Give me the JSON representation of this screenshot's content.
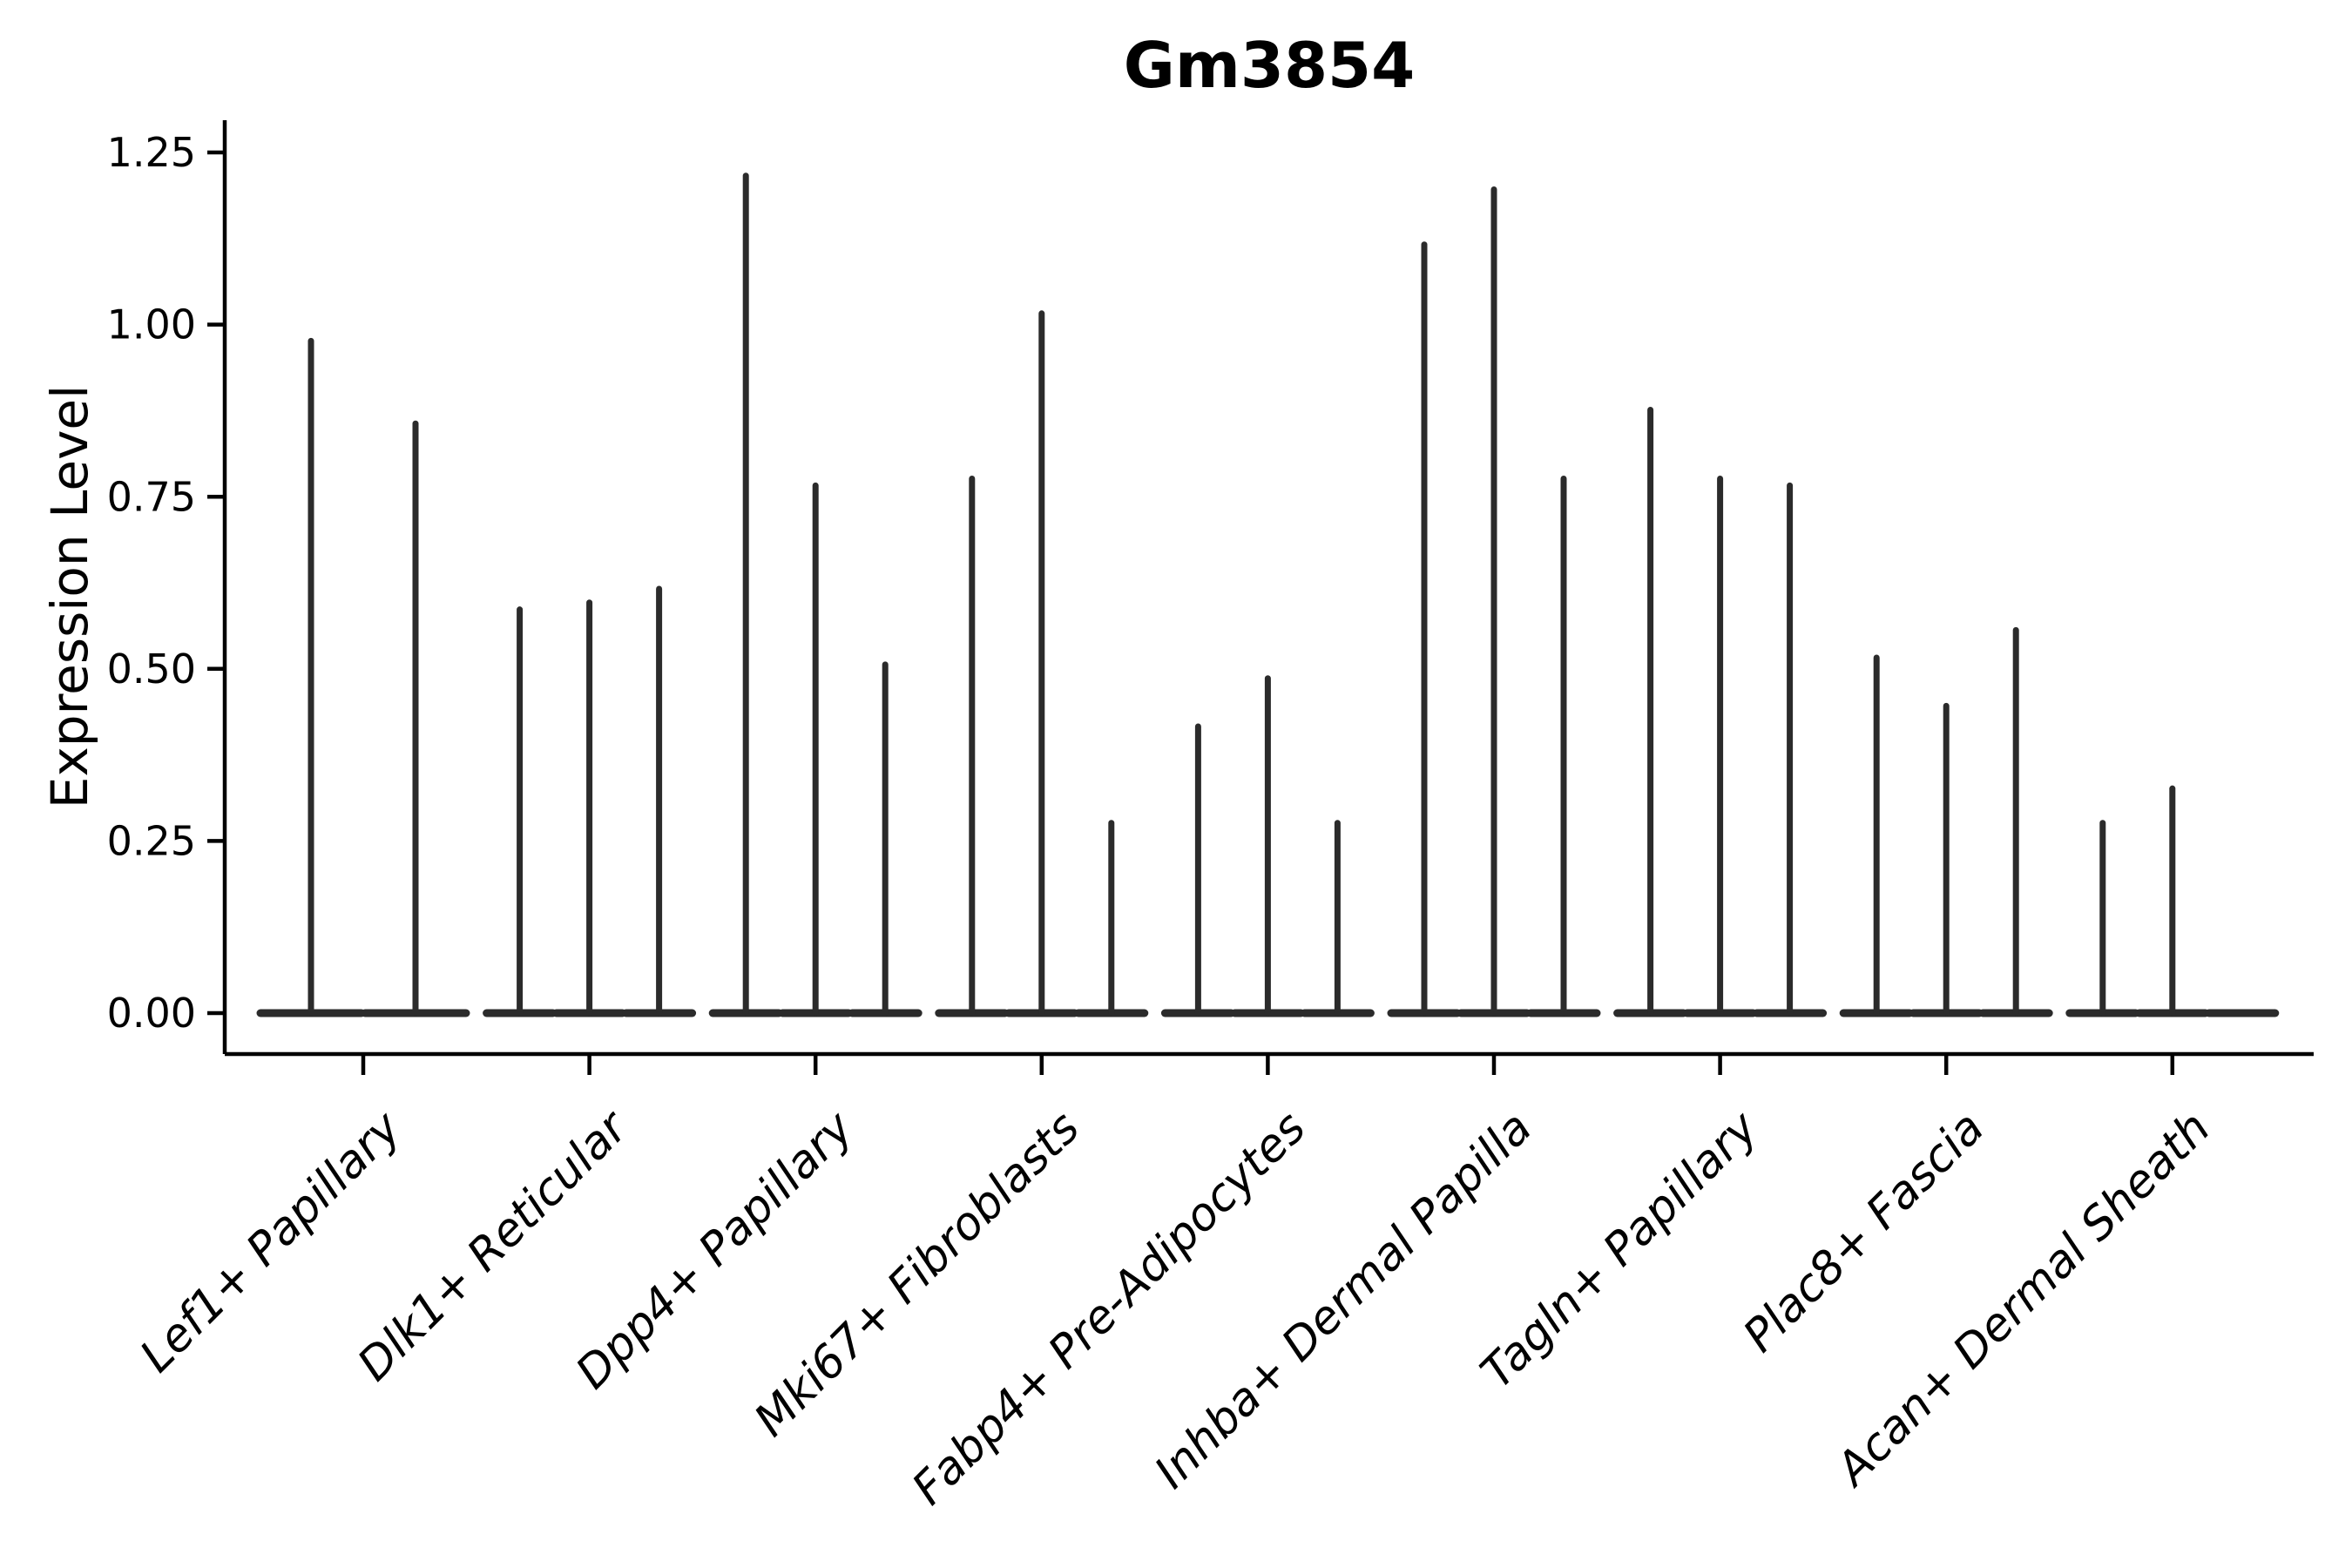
{
  "title": "Gm3854",
  "chart_data": {
    "type": "violin",
    "title": "Gm3854",
    "xlabel": "",
    "ylabel": "Expression Level",
    "ylim": [
      0,
      1.25
    ],
    "ytick_labels": [
      "0.00",
      "0.25",
      "0.50",
      "0.75",
      "1.00",
      "1.25"
    ],
    "ytick_values": [
      0,
      0.25,
      0.5,
      0.75,
      1.0,
      1.25
    ],
    "grid": false,
    "legend": "none",
    "xtick_rotation_deg": 45,
    "categories": [
      "Lef1+ Papillary",
      "Dlk1+ Reticular",
      "Dpp4+ Papillary",
      "Mki67+ Fibroblasts",
      "Fabp4+ Pre-Adipocytes",
      "Inhba+ Dermal Papilla",
      "Tagln+ Papillary",
      "Plac8+ Fascia",
      "Acan+ Dermal Sheath"
    ],
    "groups": [
      {
        "label": "Lef1+ Papillary",
        "violin_peaks": [
          0.98,
          0.86
        ]
      },
      {
        "label": "Dlk1+ Reticular",
        "violin_peaks": [
          0.59,
          0.6,
          0.62
        ]
      },
      {
        "label": "Dpp4+ Papillary",
        "violin_peaks": [
          1.22,
          0.77,
          0.51
        ]
      },
      {
        "label": "Mki67+ Fibroblasts",
        "violin_peaks": [
          0.78,
          1.02,
          0.28
        ]
      },
      {
        "label": "Fabp4+ Pre-Adipocytes",
        "violin_peaks": [
          0.42,
          0.49,
          0.28
        ]
      },
      {
        "label": "Inhba+ Dermal Papilla",
        "violin_peaks": [
          1.12,
          1.2,
          0.78
        ]
      },
      {
        "label": "Tagln+ Papillary",
        "violin_peaks": [
          0.88,
          0.78,
          0.77
        ]
      },
      {
        "label": "Plac8+ Fascia",
        "violin_peaks": [
          0.52,
          0.45,
          0.56
        ]
      },
      {
        "label": "Acan+ Dermal Sheath",
        "violin_peaks": [
          0.28,
          0.33,
          0
        ]
      }
    ],
    "colors": {
      "violin_stroke": "#2b2b2b",
      "axis": "#000000",
      "text": "#000000",
      "background": "#ffffff"
    }
  }
}
